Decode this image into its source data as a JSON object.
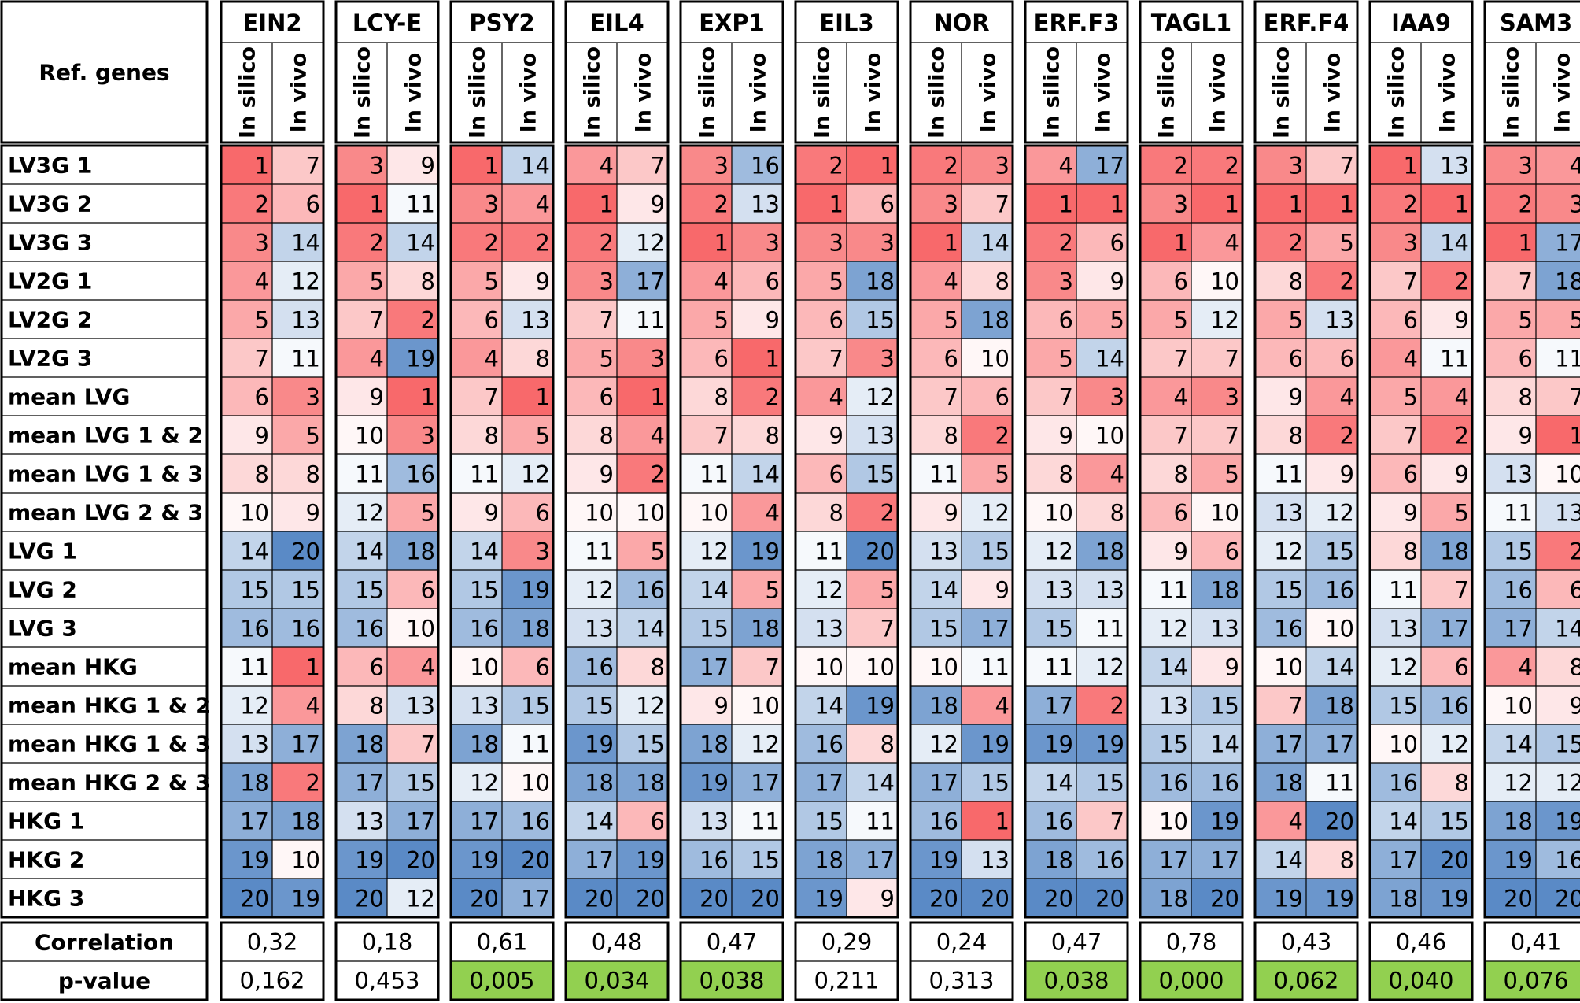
{
  "chart_data": {
    "type": "heatmap",
    "corner_label": "Ref. genes",
    "sub_columns": [
      "In silico",
      "In vivo"
    ],
    "rows": [
      "LV3G 1",
      "LV3G 2",
      "LV3G 3",
      "LV2G 1",
      "LV2G 2",
      "LV2G 3",
      "mean LVG",
      "mean LVG 1 & 2",
      "mean LVG 1 & 3",
      "mean LVG 2 & 3",
      "LVG 1",
      "LVG 2",
      "LVG 3",
      "mean HKG",
      "mean HKG 1 & 2",
      "mean HKG 1 & 3",
      "mean HKG 2 & 3",
      "HKG 1",
      "HKG 2",
      "HKG 3"
    ],
    "color_scale": {
      "min": 1,
      "max": 20,
      "low_color": "#f8696b",
      "mid_color": "#ffffff",
      "high_color": "#5a8ac6"
    },
    "highlight_color": "#92d050",
    "stat_labels": [
      "Correlation",
      "p-value"
    ],
    "genes": [
      {
        "name": "EIN2",
        "in_silico": [
          1,
          2,
          3,
          4,
          5,
          7,
          6,
          9,
          8,
          10,
          14,
          15,
          16,
          11,
          12,
          13,
          18,
          17,
          19,
          20
        ],
        "in_vivo": [
          7,
          6,
          14,
          12,
          13,
          11,
          3,
          5,
          8,
          9,
          20,
          15,
          16,
          1,
          4,
          17,
          2,
          18,
          10,
          19
        ],
        "correlation": "0,32",
        "p_value": "0,162",
        "significant": false
      },
      {
        "name": "LCY-E",
        "in_silico": [
          3,
          1,
          2,
          5,
          7,
          4,
          9,
          10,
          11,
          12,
          14,
          15,
          16,
          6,
          8,
          18,
          17,
          13,
          19,
          20
        ],
        "in_vivo": [
          9,
          11,
          14,
          8,
          2,
          19,
          1,
          3,
          16,
          5,
          18,
          6,
          10,
          4,
          13,
          7,
          15,
          17,
          20,
          12
        ],
        "correlation": "0,18",
        "p_value": "0,453",
        "significant": false
      },
      {
        "name": "PSY2",
        "in_silico": [
          1,
          3,
          2,
          5,
          6,
          4,
          7,
          8,
          11,
          9,
          14,
          15,
          16,
          10,
          13,
          18,
          12,
          17,
          19,
          20
        ],
        "in_vivo": [
          14,
          4,
          2,
          9,
          13,
          8,
          1,
          5,
          12,
          6,
          3,
          19,
          18,
          6,
          15,
          11,
          10,
          16,
          20,
          17
        ],
        "correlation": "0,61",
        "p_value": "0,005",
        "significant": true
      },
      {
        "name": "EIL4",
        "in_silico": [
          4,
          1,
          2,
          3,
          7,
          5,
          6,
          8,
          9,
          10,
          11,
          12,
          13,
          16,
          15,
          19,
          18,
          14,
          17,
          20
        ],
        "in_vivo": [
          7,
          9,
          12,
          17,
          11,
          3,
          1,
          4,
          2,
          10,
          5,
          16,
          14,
          8,
          12,
          15,
          18,
          6,
          19,
          20
        ],
        "correlation": "0,48",
        "p_value": "0,034",
        "significant": true
      },
      {
        "name": "EXP1",
        "in_silico": [
          3,
          2,
          1,
          4,
          5,
          6,
          8,
          7,
          11,
          10,
          12,
          14,
          15,
          17,
          9,
          18,
          19,
          13,
          16,
          20
        ],
        "in_vivo": [
          16,
          13,
          3,
          6,
          9,
          1,
          2,
          8,
          14,
          4,
          19,
          5,
          18,
          7,
          10,
          12,
          17,
          11,
          15,
          20
        ],
        "correlation": "0,47",
        "p_value": "0,038",
        "significant": true
      },
      {
        "name": "EIL3",
        "in_silico": [
          2,
          1,
          3,
          5,
          6,
          7,
          4,
          9,
          6,
          8,
          11,
          12,
          13,
          10,
          14,
          16,
          17,
          15,
          18,
          19
        ],
        "in_vivo": [
          1,
          6,
          3,
          18,
          15,
          3,
          12,
          13,
          15,
          2,
          20,
          5,
          7,
          10,
          19,
          8,
          14,
          11,
          17,
          9
        ],
        "correlation": "0,29",
        "p_value": "0,211",
        "significant": false
      },
      {
        "name": "NOR",
        "in_silico": [
          2,
          3,
          1,
          4,
          5,
          6,
          7,
          8,
          11,
          9,
          13,
          14,
          15,
          10,
          18,
          12,
          17,
          16,
          19,
          20
        ],
        "in_vivo": [
          3,
          7,
          14,
          8,
          18,
          10,
          6,
          2,
          5,
          12,
          15,
          9,
          17,
          11,
          4,
          19,
          15,
          1,
          13,
          20
        ],
        "correlation": "0,24",
        "p_value": "0,313",
        "significant": false
      },
      {
        "name": "ERF.F3",
        "in_silico": [
          4,
          1,
          2,
          3,
          6,
          5,
          7,
          9,
          8,
          10,
          12,
          13,
          15,
          11,
          17,
          19,
          14,
          16,
          18,
          20
        ],
        "in_vivo": [
          17,
          1,
          6,
          9,
          5,
          14,
          3,
          10,
          4,
          8,
          18,
          13,
          11,
          12,
          2,
          19,
          15,
          7,
          16,
          20
        ],
        "correlation": "0,47",
        "p_value": "0,038",
        "significant": true
      },
      {
        "name": "TAGL1",
        "in_silico": [
          2,
          3,
          1,
          6,
          5,
          7,
          4,
          7,
          8,
          6,
          9,
          11,
          12,
          14,
          13,
          15,
          16,
          10,
          17,
          18
        ],
        "in_vivo": [
          2,
          1,
          4,
          10,
          12,
          7,
          3,
          7,
          5,
          10,
          6,
          18,
          13,
          9,
          15,
          14,
          16,
          19,
          17,
          20
        ],
        "correlation": "0,78",
        "p_value": "0,000",
        "significant": true
      },
      {
        "name": "ERF.F4",
        "in_silico": [
          3,
          1,
          2,
          8,
          5,
          6,
          9,
          8,
          11,
          13,
          12,
          15,
          16,
          10,
          7,
          17,
          18,
          4,
          14,
          19
        ],
        "in_vivo": [
          7,
          1,
          5,
          2,
          13,
          6,
          4,
          2,
          9,
          12,
          15,
          16,
          10,
          14,
          18,
          17,
          11,
          20,
          8,
          19
        ],
        "correlation": "0,43",
        "p_value": "0,062",
        "significant": true
      },
      {
        "name": "IAA9",
        "in_silico": [
          1,
          2,
          3,
          7,
          6,
          4,
          5,
          7,
          6,
          9,
          8,
          11,
          13,
          12,
          15,
          10,
          16,
          14,
          17,
          18
        ],
        "in_vivo": [
          13,
          1,
          14,
          2,
          9,
          11,
          4,
          2,
          9,
          5,
          18,
          7,
          17,
          6,
          16,
          12,
          8,
          15,
          20,
          19
        ],
        "correlation": "0,46",
        "p_value": "0,040",
        "significant": true
      },
      {
        "name": "SAM3",
        "in_silico": [
          3,
          2,
          1,
          7,
          5,
          6,
          8,
          9,
          13,
          11,
          15,
          16,
          17,
          4,
          10,
          14,
          12,
          18,
          19,
          20
        ],
        "in_vivo": [
          4,
          3,
          17,
          18,
          5,
          11,
          7,
          1,
          10,
          13,
          2,
          6,
          14,
          8,
          9,
          15,
          12,
          19,
          16,
          20
        ],
        "correlation": "0,41",
        "p_value": "0,076",
        "significant": true
      }
    ]
  }
}
